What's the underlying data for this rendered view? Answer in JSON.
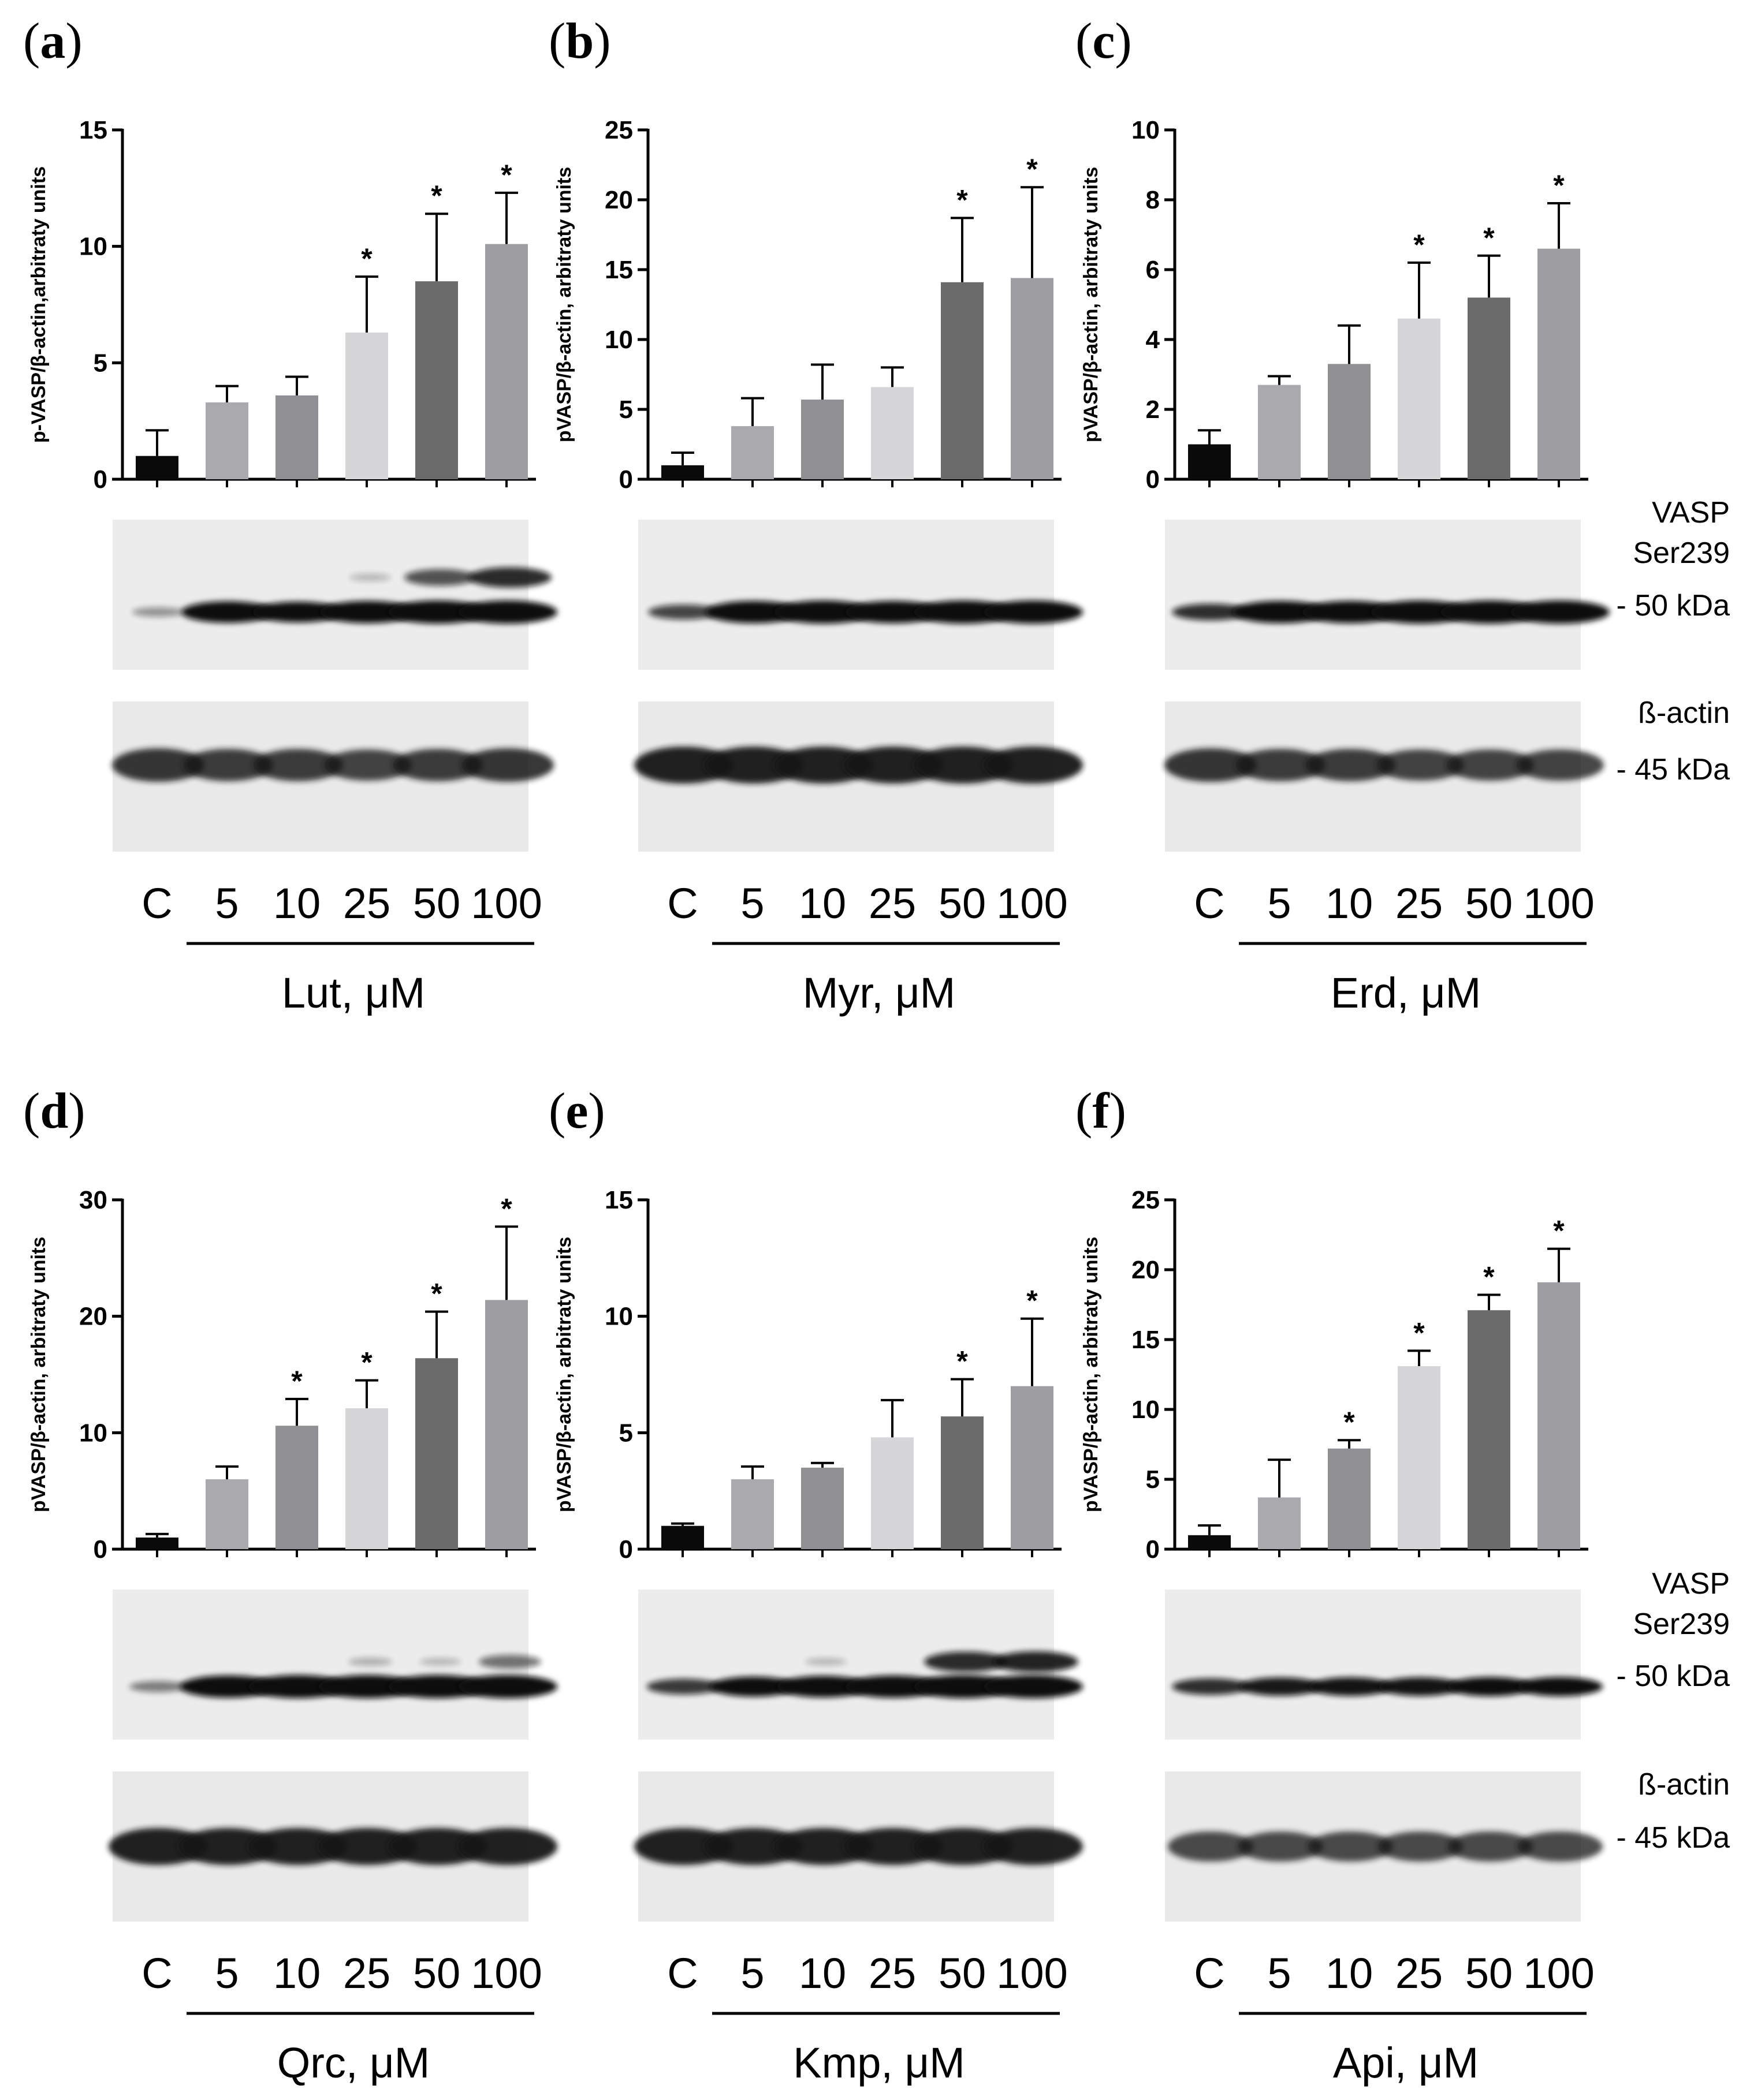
{
  "figure": {
    "marker_labels": {
      "vasp": "VASP",
      "ser": "Ser239",
      "kda50": "- 50 kDa",
      "actin": "ß-actin",
      "kda45": "- 45 kDa"
    }
  },
  "chart_data": [
    {
      "type": "bar",
      "panel": "(a)",
      "panel_letter": "a",
      "ylabel": "p-VASP/β-actin,arbitraty units",
      "ylim": [
        0,
        15
      ],
      "yticks": [
        "0",
        "5",
        "10",
        "15"
      ],
      "categories": [
        "C",
        "5",
        "10",
        "25",
        "50",
        "100"
      ],
      "values": [
        1,
        3.3,
        3.6,
        6.3,
        8.5,
        10.1
      ],
      "errors": [
        1.1,
        0.7,
        0.8,
        2.4,
        2.9,
        2.2
      ],
      "significant": [
        false,
        false,
        false,
        true,
        true,
        true
      ],
      "sig_marker": "*",
      "xlabel": "Lut, μM",
      "colors": [
        "#0a0a0a",
        "#a9a9ae",
        "#8f8f94",
        "#d6d6d8",
        "#6b6b6b",
        "#9d9da2"
      ]
    },
    {
      "type": "bar",
      "panel": "(b)",
      "panel_letter": "b",
      "ylabel": "pVASP/β-actin, arbitraty units",
      "ylim": [
        0,
        25
      ],
      "yticks": [
        "0",
        "5",
        "10",
        "15",
        "20",
        "25"
      ],
      "categories": [
        "C",
        "5",
        "10",
        "25",
        "50",
        "100"
      ],
      "values": [
        1,
        3.8,
        5.7,
        6.6,
        14.1,
        14.4
      ],
      "errors": [
        0.9,
        2.0,
        2.5,
        1.4,
        4.6,
        6.5
      ],
      "significant": [
        false,
        false,
        false,
        false,
        true,
        true
      ],
      "sig_marker": "*",
      "xlabel": "Myr, μM",
      "colors": [
        "#0a0a0a",
        "#a9a9ae",
        "#8f8f94",
        "#d6d6d8",
        "#6b6b6b",
        "#9d9da2"
      ]
    },
    {
      "type": "bar",
      "panel": "(c)",
      "panel_letter": "c",
      "ylabel": "pVASP/β-actin, arbitraty units",
      "ylim": [
        0,
        10
      ],
      "yticks": [
        "0",
        "2",
        "4",
        "6",
        "8",
        "10"
      ],
      "categories": [
        "C",
        "5",
        "10",
        "25",
        "50",
        "100"
      ],
      "values": [
        1,
        2.7,
        3.3,
        4.6,
        5.2,
        6.6
      ],
      "errors": [
        0.4,
        0.25,
        1.1,
        1.6,
        1.2,
        1.3
      ],
      "significant": [
        false,
        false,
        false,
        true,
        true,
        true
      ],
      "sig_marker": "*",
      "xlabel": "Erd, μM",
      "colors": [
        "#0a0a0a",
        "#a9a9ae",
        "#8f8f94",
        "#d6d6d8",
        "#6b6b6b",
        "#9d9da2"
      ]
    },
    {
      "type": "bar",
      "panel": "(d)",
      "panel_letter": "d",
      "ylabel": "pVASP/β-actin, arbitraty units",
      "ylim": [
        0,
        30
      ],
      "yticks": [
        "0",
        "10",
        "20",
        "30"
      ],
      "categories": [
        "C",
        "5",
        "10",
        "25",
        "50",
        "100"
      ],
      "values": [
        1,
        6.0,
        10.6,
        12.1,
        16.4,
        21.4
      ],
      "errors": [
        0.3,
        1.1,
        2.3,
        2.4,
        4.0,
        6.3
      ],
      "significant": [
        false,
        false,
        true,
        true,
        true,
        true
      ],
      "sig_marker": "*",
      "xlabel": "Qrc, μM",
      "colors": [
        "#0a0a0a",
        "#a9a9ae",
        "#8f8f94",
        "#d6d6d8",
        "#6b6b6b",
        "#9d9da2"
      ]
    },
    {
      "type": "bar",
      "panel": "(e)",
      "panel_letter": "e",
      "ylabel": "pVASP/β-actin, arbitraty units",
      "ylim": [
        0,
        15
      ],
      "yticks": [
        "0",
        "5",
        "10",
        "15"
      ],
      "categories": [
        "C",
        "5",
        "10",
        "25",
        "50",
        "100"
      ],
      "values": [
        1,
        3.0,
        3.5,
        4.8,
        5.7,
        7.0
      ],
      "errors": [
        0.1,
        0.55,
        0.2,
        1.6,
        1.6,
        2.9
      ],
      "significant": [
        false,
        false,
        false,
        false,
        true,
        true
      ],
      "sig_marker": "*",
      "xlabel": "Kmp, μM",
      "colors": [
        "#0a0a0a",
        "#a9a9ae",
        "#8f8f94",
        "#d6d6d8",
        "#6b6b6b",
        "#9d9da2"
      ]
    },
    {
      "type": "bar",
      "panel": "(f)",
      "panel_letter": "f",
      "ylabel": "pVASP/β-actin, arbitraty units",
      "ylim": [
        0,
        25
      ],
      "yticks": [
        "0",
        "5",
        "10",
        "15",
        "20",
        "25"
      ],
      "categories": [
        "C",
        "5",
        "10",
        "25",
        "50",
        "100"
      ],
      "values": [
        1,
        3.7,
        7.2,
        13.1,
        17.1,
        19.1
      ],
      "errors": [
        0.7,
        2.7,
        0.6,
        1.1,
        1.1,
        2.4
      ],
      "significant": [
        false,
        false,
        true,
        true,
        true,
        true
      ],
      "sig_marker": "*",
      "xlabel": "Api, μM",
      "colors": [
        "#0a0a0a",
        "#a9a9ae",
        "#8f8f94",
        "#d6d6d8",
        "#6b6b6b",
        "#9d9da2"
      ]
    }
  ]
}
